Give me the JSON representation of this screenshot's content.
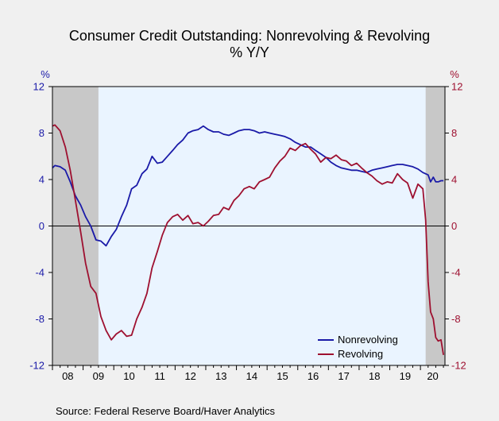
{
  "chart_data": {
    "type": "line",
    "title": "Consumer Credit Outstanding: Nonrevolving & Revolving",
    "subtitle": "% Y/Y",
    "left_axis": {
      "unit": "%",
      "ylim": [
        -12,
        12
      ],
      "ticks": [
        "12",
        "8",
        "4",
        "0",
        "-4",
        "-8",
        "-12"
      ]
    },
    "right_axis": {
      "unit": "%",
      "ylim": [
        -12,
        12
      ],
      "ticks": [
        "12",
        "8",
        "4",
        "0",
        "-4",
        "-8",
        "-12"
      ]
    },
    "x_tick_labels": [
      "08",
      "09",
      "10",
      "11",
      "12",
      "13",
      "14",
      "15",
      "16",
      "17",
      "18",
      "19",
      "20"
    ],
    "x_range": [
      2008.0,
      2020.8
    ],
    "recessions": [
      [
        2008.0,
        2009.5
      ],
      [
        2020.17,
        2020.8
      ]
    ],
    "grid": false,
    "zero_line": true,
    "legend_position": "bottom-right",
    "series": [
      {
        "name": "Nonrevolving",
        "color": "#1a1aa8",
        "axis": "left",
        "points": [
          [
            2008.0,
            5.0
          ],
          [
            2008.08,
            5.2
          ],
          [
            2008.25,
            5.1
          ],
          [
            2008.42,
            4.8
          ],
          [
            2008.58,
            3.8
          ],
          [
            2008.75,
            2.6
          ],
          [
            2008.92,
            1.8
          ],
          [
            2009.08,
            0.8
          ],
          [
            2009.25,
            0.0
          ],
          [
            2009.42,
            -1.2
          ],
          [
            2009.58,
            -1.3
          ],
          [
            2009.75,
            -1.7
          ],
          [
            2009.92,
            -0.9
          ],
          [
            2010.08,
            -0.3
          ],
          [
            2010.25,
            0.8
          ],
          [
            2010.42,
            1.8
          ],
          [
            2010.58,
            3.2
          ],
          [
            2010.75,
            3.5
          ],
          [
            2010.92,
            4.5
          ],
          [
            2011.08,
            4.9
          ],
          [
            2011.25,
            6.0
          ],
          [
            2011.42,
            5.4
          ],
          [
            2011.58,
            5.5
          ],
          [
            2011.75,
            6.0
          ],
          [
            2011.92,
            6.5
          ],
          [
            2012.08,
            7.0
          ],
          [
            2012.25,
            7.4
          ],
          [
            2012.42,
            8.0
          ],
          [
            2012.58,
            8.2
          ],
          [
            2012.75,
            8.3
          ],
          [
            2012.92,
            8.6
          ],
          [
            2013.08,
            8.3
          ],
          [
            2013.25,
            8.1
          ],
          [
            2013.42,
            8.1
          ],
          [
            2013.58,
            7.9
          ],
          [
            2013.75,
            7.8
          ],
          [
            2013.92,
            8.0
          ],
          [
            2014.08,
            8.2
          ],
          [
            2014.25,
            8.3
          ],
          [
            2014.42,
            8.3
          ],
          [
            2014.58,
            8.2
          ],
          [
            2014.75,
            8.0
          ],
          [
            2014.92,
            8.1
          ],
          [
            2015.08,
            8.0
          ],
          [
            2015.25,
            7.9
          ],
          [
            2015.42,
            7.8
          ],
          [
            2015.58,
            7.7
          ],
          [
            2015.75,
            7.5
          ],
          [
            2015.92,
            7.2
          ],
          [
            2016.08,
            7.0
          ],
          [
            2016.25,
            6.8
          ],
          [
            2016.42,
            6.8
          ],
          [
            2016.58,
            6.5
          ],
          [
            2016.75,
            6.2
          ],
          [
            2016.92,
            5.9
          ],
          [
            2017.08,
            5.5
          ],
          [
            2017.25,
            5.2
          ],
          [
            2017.42,
            5.0
          ],
          [
            2017.58,
            4.9
          ],
          [
            2017.75,
            4.8
          ],
          [
            2017.92,
            4.8
          ],
          [
            2018.08,
            4.7
          ],
          [
            2018.25,
            4.6
          ],
          [
            2018.42,
            4.8
          ],
          [
            2018.58,
            4.9
          ],
          [
            2018.75,
            5.0
          ],
          [
            2018.92,
            5.1
          ],
          [
            2019.08,
            5.2
          ],
          [
            2019.25,
            5.3
          ],
          [
            2019.42,
            5.3
          ],
          [
            2019.58,
            5.2
          ],
          [
            2019.75,
            5.1
          ],
          [
            2019.92,
            4.9
          ],
          [
            2020.08,
            4.6
          ],
          [
            2020.25,
            4.4
          ],
          [
            2020.33,
            3.8
          ],
          [
            2020.42,
            4.2
          ],
          [
            2020.5,
            3.8
          ],
          [
            2020.58,
            3.8
          ],
          [
            2020.67,
            3.9
          ],
          [
            2020.75,
            3.9
          ]
        ]
      },
      {
        "name": "Revolving",
        "color": "#9e1030",
        "axis": "right",
        "points": [
          [
            2008.0,
            8.6
          ],
          [
            2008.08,
            8.7
          ],
          [
            2008.25,
            8.2
          ],
          [
            2008.42,
            6.8
          ],
          [
            2008.58,
            4.8
          ],
          [
            2008.75,
            2.2
          ],
          [
            2008.92,
            -0.5
          ],
          [
            2009.08,
            -3.2
          ],
          [
            2009.25,
            -5.2
          ],
          [
            2009.42,
            -5.8
          ],
          [
            2009.58,
            -7.8
          ],
          [
            2009.75,
            -9.0
          ],
          [
            2009.92,
            -9.8
          ],
          [
            2010.08,
            -9.3
          ],
          [
            2010.25,
            -9.0
          ],
          [
            2010.42,
            -9.5
          ],
          [
            2010.58,
            -9.4
          ],
          [
            2010.75,
            -8.0
          ],
          [
            2010.92,
            -7.0
          ],
          [
            2011.08,
            -5.8
          ],
          [
            2011.25,
            -3.6
          ],
          [
            2011.42,
            -2.2
          ],
          [
            2011.58,
            -0.8
          ],
          [
            2011.75,
            0.3
          ],
          [
            2011.92,
            0.8
          ],
          [
            2012.08,
            1.0
          ],
          [
            2012.25,
            0.5
          ],
          [
            2012.42,
            0.9
          ],
          [
            2012.58,
            0.2
          ],
          [
            2012.75,
            0.3
          ],
          [
            2012.92,
            0.0
          ],
          [
            2013.08,
            0.4
          ],
          [
            2013.25,
            0.9
          ],
          [
            2013.42,
            1.0
          ],
          [
            2013.58,
            1.6
          ],
          [
            2013.75,
            1.4
          ],
          [
            2013.92,
            2.2
          ],
          [
            2014.08,
            2.6
          ],
          [
            2014.25,
            3.2
          ],
          [
            2014.42,
            3.4
          ],
          [
            2014.58,
            3.2
          ],
          [
            2014.75,
            3.8
          ],
          [
            2014.92,
            4.0
          ],
          [
            2015.08,
            4.2
          ],
          [
            2015.25,
            5.0
          ],
          [
            2015.42,
            5.6
          ],
          [
            2015.58,
            6.0
          ],
          [
            2015.75,
            6.7
          ],
          [
            2015.92,
            6.5
          ],
          [
            2016.08,
            6.9
          ],
          [
            2016.25,
            7.1
          ],
          [
            2016.42,
            6.6
          ],
          [
            2016.58,
            6.2
          ],
          [
            2016.75,
            5.5
          ],
          [
            2016.92,
            5.9
          ],
          [
            2017.08,
            5.8
          ],
          [
            2017.25,
            6.1
          ],
          [
            2017.42,
            5.7
          ],
          [
            2017.58,
            5.6
          ],
          [
            2017.75,
            5.2
          ],
          [
            2017.92,
            5.4
          ],
          [
            2018.08,
            5.0
          ],
          [
            2018.25,
            4.6
          ],
          [
            2018.42,
            4.3
          ],
          [
            2018.58,
            3.9
          ],
          [
            2018.75,
            3.6
          ],
          [
            2018.92,
            3.8
          ],
          [
            2019.08,
            3.7
          ],
          [
            2019.25,
            4.5
          ],
          [
            2019.42,
            4.0
          ],
          [
            2019.58,
            3.7
          ],
          [
            2019.75,
            2.4
          ],
          [
            2019.92,
            3.6
          ],
          [
            2020.08,
            3.2
          ],
          [
            2020.17,
            0.5
          ],
          [
            2020.25,
            -4.8
          ],
          [
            2020.33,
            -7.4
          ],
          [
            2020.42,
            -8.0
          ],
          [
            2020.5,
            -9.6
          ],
          [
            2020.58,
            -9.9
          ],
          [
            2020.67,
            -9.8
          ],
          [
            2020.75,
            -11.1
          ]
        ]
      }
    ]
  },
  "footer": {
    "source": "Source:  Federal Reserve Board/Haver Analytics"
  }
}
